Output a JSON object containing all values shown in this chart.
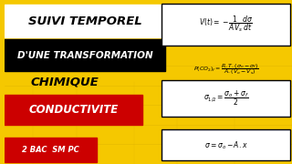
{
  "bg_color": "#F5C800",
  "title1": "SUIVI TEMPOREL",
  "title2": "D'UNE TRANSFORMATION",
  "title3": "CHIMIQUE",
  "title4": "CONDUCTIVITE",
  "badge": "2 BAC  SM PC",
  "eq1": "$V(t) = -\\dfrac{1}{AV_s}\\dfrac{d\\sigma}{dt}$",
  "eq2": "$P(CO_2)_f = \\dfrac{R.T.(\\sigma_o - \\sigma_f)}{A.(V_o - V_s)}$",
  "eq3": "$\\sigma_{1/2} = \\dfrac{\\sigma_o + \\sigma_f}{2}$",
  "eq4": "$\\sigma = \\sigma_o - A.x$"
}
